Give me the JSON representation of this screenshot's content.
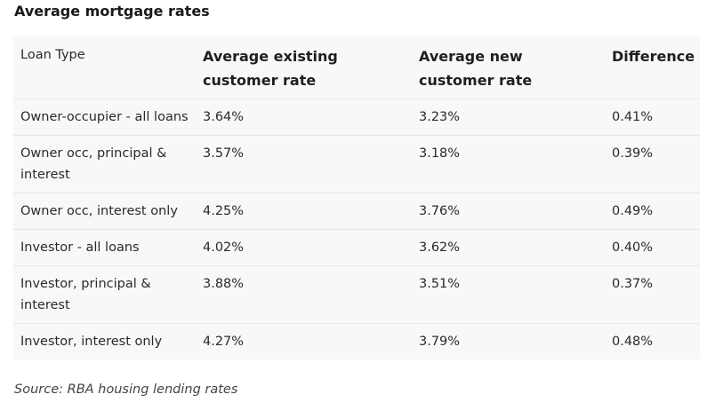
{
  "title": "Average mortgage rates",
  "table": {
    "headers": [
      "Loan Type",
      "Average existing customer rate",
      "Average new customer rate",
      "Difference"
    ],
    "rows": [
      [
        "Owner-occupier - all loans",
        "3.64%",
        "3.23%",
        "0.41%"
      ],
      [
        "Owner occ, principal & interest",
        "3.57%",
        "3.18%",
        "0.39%"
      ],
      [
        "Owner occ, interest only",
        "4.25%",
        "3.76%",
        "0.49%"
      ],
      [
        "Investor - all loans",
        "4.02%",
        "3.62%",
        "0.40%"
      ],
      [
        "Investor, principal & interest",
        "3.88%",
        "3.51%",
        "0.37%"
      ],
      [
        "Investor, interest only",
        "4.27%",
        "3.79%",
        "0.48%"
      ]
    ]
  },
  "source": "Source: RBA housing lending rates"
}
